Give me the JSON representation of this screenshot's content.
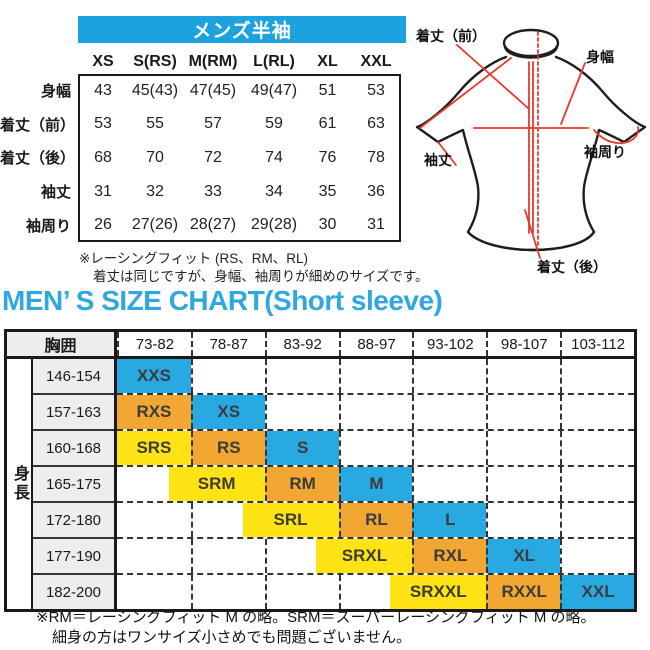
{
  "colors": {
    "banner_blue": "#1CA3DF",
    "heading_blue": "#2FA8DF",
    "chip_blue": "#29A9E1",
    "chip_orange": "#F2A733",
    "chip_yellow": "#FFE315",
    "measure_red": "#E8392C"
  },
  "chart_data": [
    {
      "type": "table",
      "title": "メンズ半袖",
      "columns": [
        "XS",
        "S(RS)",
        "M(RM)",
        "L(RL)",
        "XL",
        "XXL"
      ],
      "row_labels": [
        "身幅",
        "着丈（前）",
        "着丈（後）",
        "袖丈",
        "袖周り"
      ],
      "values": [
        [
          "43",
          "45(43)",
          "47(45)",
          "49(47)",
          "51",
          "53"
        ],
        [
          "53",
          "55",
          "57",
          "59",
          "61",
          "63"
        ],
        [
          "68",
          "70",
          "72",
          "74",
          "76",
          "78"
        ],
        [
          "31",
          "32",
          "33",
          "34",
          "35",
          "36"
        ],
        [
          "26",
          "27(26)",
          "28(27)",
          "29(28)",
          "30",
          "31"
        ]
      ],
      "footnotes": [
        "※レーシングフィット (RS、RM、RL)",
        "着丈は同じですが、身幅、袖周りが細めのサイズです。"
      ]
    },
    {
      "type": "table",
      "title": "MEN’ S SIZE CHART(Short sleeve)",
      "x_axis_label": "胸囲",
      "y_axis_label": "身長",
      "columns": [
        "73-82",
        "78-87",
        "83-92",
        "88-97",
        "93-102",
        "98-107",
        "103-112"
      ],
      "row_labels": [
        "146-154",
        "157-163",
        "160-168",
        "165-175",
        "172-180",
        "177-190",
        "182-200"
      ],
      "cells": [
        [
          {
            "label": "XXS",
            "tone": "blue",
            "start": 0,
            "span": 1
          }
        ],
        [
          {
            "label": "RXS",
            "tone": "orange",
            "start": 0,
            "span": 1
          },
          {
            "label": "XS",
            "tone": "blue",
            "start": 1,
            "span": 1
          }
        ],
        [
          {
            "label": "SRS",
            "tone": "yellow",
            "start": 0,
            "span": 1
          },
          {
            "label": "RS",
            "tone": "orange",
            "start": 1,
            "span": 1
          },
          {
            "label": "S",
            "tone": "blue",
            "start": 2,
            "span": 1
          }
        ],
        [
          {
            "label": "SRM",
            "tone": "yellow",
            "start": 0.7,
            "span": 1.3
          },
          {
            "label": "RM",
            "tone": "orange",
            "start": 2,
            "span": 1
          },
          {
            "label": "M",
            "tone": "blue",
            "start": 3,
            "span": 1
          }
        ],
        [
          {
            "label": "SRL",
            "tone": "yellow",
            "start": 1.7,
            "span": 1.3
          },
          {
            "label": "RL",
            "tone": "orange",
            "start": 3,
            "span": 1
          },
          {
            "label": "L",
            "tone": "blue",
            "start": 4,
            "span": 1
          }
        ],
        [
          {
            "label": "SRXL",
            "tone": "yellow",
            "start": 2.7,
            "span": 1.3
          },
          {
            "label": "RXL",
            "tone": "orange",
            "start": 4,
            "span": 1
          },
          {
            "label": "XL",
            "tone": "blue",
            "start": 5,
            "span": 1
          }
        ],
        [
          {
            "label": "SRXXL",
            "tone": "yellow",
            "start": 3.7,
            "span": 1.3
          },
          {
            "label": "RXXL",
            "tone": "orange",
            "start": 5,
            "span": 1
          },
          {
            "label": "XXL",
            "tone": "blue",
            "start": 6,
            "span": 1
          }
        ]
      ],
      "footnotes": [
        "※RM＝レーシングフィット M の略。SRM＝スーパーレーシングフィット M の略。",
        "細身の方はワンサイズ小さめでも問題ございません。"
      ]
    }
  ],
  "diagram": {
    "front_length_label": "着丈（前）",
    "body_width_label": "身幅",
    "sleeve_length_label": "袖丈",
    "sleeve_round_label": "袖周り",
    "back_length_label": "着丈（後）"
  }
}
